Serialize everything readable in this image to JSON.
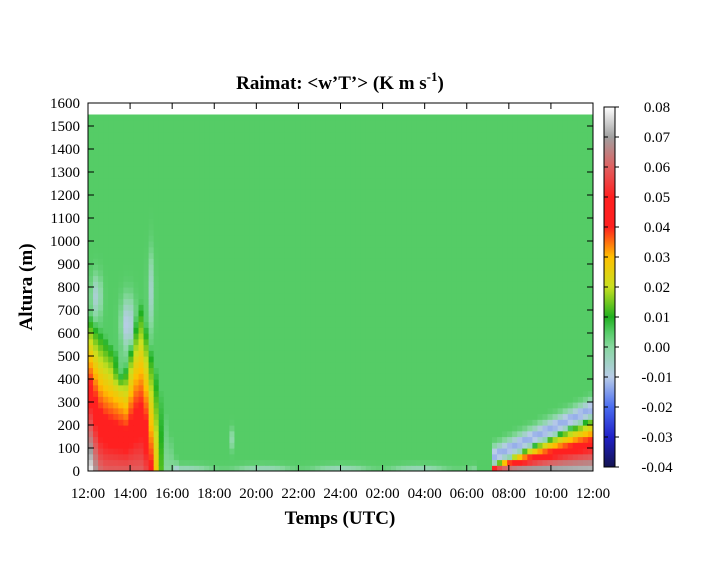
{
  "chart_data": {
    "type": "heatmap",
    "title": "Raimat: <w’T’> (K m s",
    "title_superscript": "-1",
    "title_suffix": ")",
    "xlabel": "Temps (UTC)",
    "ylabel": "Altura (m)",
    "x_ticks": [
      "12:00",
      "14:00",
      "16:00",
      "18:00",
      "20:00",
      "22:00",
      "24:00",
      "02:00",
      "04:00",
      "06:00",
      "08:00",
      "10:00",
      "12:00"
    ],
    "xlim": [
      0,
      24
    ],
    "y_ticks": [
      0,
      100,
      200,
      300,
      400,
      500,
      600,
      700,
      800,
      900,
      1000,
      1100,
      1200,
      1300,
      1400,
      1500,
      1600
    ],
    "ylim": [
      0,
      1600
    ],
    "data_top_m": 1550,
    "colorbar": {
      "range": [
        -0.04,
        0.08
      ],
      "ticks": [
        "0.08",
        "0.07",
        "0.06",
        "0.05",
        "0.04",
        "0.03",
        "0.02",
        "0.01",
        "0.00",
        "-0.01",
        "-0.02",
        "-0.03",
        "-0.04"
      ],
      "stops": [
        {
          "v": -0.04,
          "color": "#141450"
        },
        {
          "v": -0.03,
          "color": "#2020c8"
        },
        {
          "v": -0.02,
          "color": "#4a6cf0"
        },
        {
          "v": -0.01,
          "color": "#b8cce8"
        },
        {
          "v": 0.0,
          "color": "#88d8a0"
        },
        {
          "v": 0.005,
          "color": "#55cc66"
        },
        {
          "v": 0.01,
          "color": "#20b020"
        },
        {
          "v": 0.02,
          "color": "#c8e020"
        },
        {
          "v": 0.03,
          "color": "#ffc000"
        },
        {
          "v": 0.04,
          "color": "#ff2020"
        },
        {
          "v": 0.05,
          "color": "#ff2020"
        },
        {
          "v": 0.06,
          "color": "#e06060"
        },
        {
          "v": 0.07,
          "color": "#a0a0a0"
        },
        {
          "v": 0.08,
          "color": "#ffffff"
        }
      ]
    },
    "background_value": 0.005
  }
}
